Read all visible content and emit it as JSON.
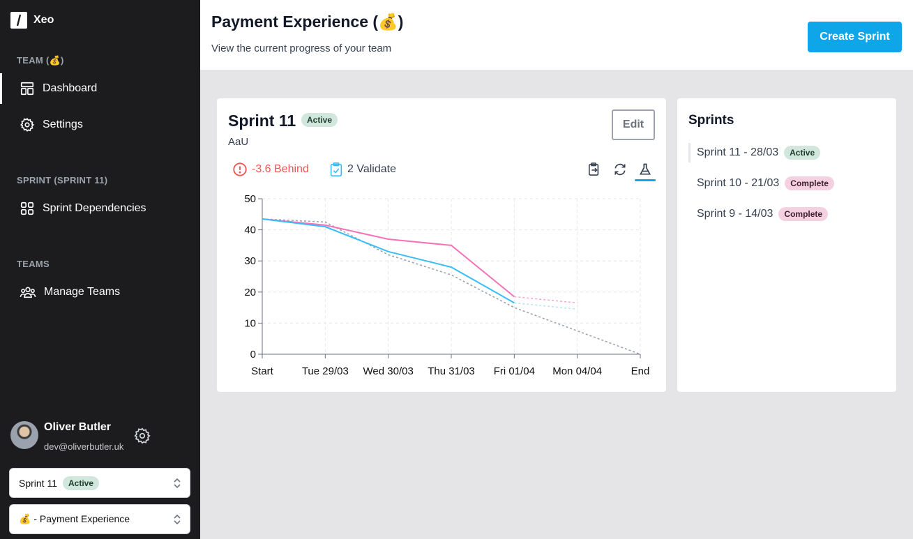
{
  "app": {
    "name": "Xeo"
  },
  "sidebar": {
    "team_section": "TEAM (💰)",
    "team_items": [
      {
        "label": "Dashboard",
        "icon": "dashboard-icon"
      },
      {
        "label": "Settings",
        "icon": "gear-icon"
      }
    ],
    "sprint_section": "SPRINT (SPRINT 11)",
    "sprint_items": [
      {
        "label": "Sprint Dependencies",
        "icon": "grid-icon"
      }
    ],
    "teams_section": "TEAMS",
    "teams_items": [
      {
        "label": "Manage Teams",
        "icon": "users-icon"
      }
    ],
    "user": {
      "name": "Oliver Butler",
      "email": "dev@oliverbutler.uk"
    },
    "sprint_select": {
      "value": "Sprint 11",
      "badge": "Active"
    },
    "team_select": {
      "value": "💰 - Payment Experience"
    }
  },
  "header": {
    "title": "Payment Experience (💰)",
    "subtitle": "View the current progress of your team",
    "create_label": "Create Sprint"
  },
  "sprint": {
    "title": "Sprint 11",
    "badge": "Active",
    "subtitle": "AaU",
    "edit_label": "Edit",
    "behind": "-3.6 Behind",
    "validate": "2 Validate"
  },
  "sprints_panel": {
    "title": "Sprints",
    "items": [
      {
        "label": "Sprint 11 - 28/03",
        "badge": "Active",
        "status": "active"
      },
      {
        "label": "Sprint 10 - 21/03",
        "badge": "Complete",
        "status": "complete"
      },
      {
        "label": "Sprint 9 - 14/03",
        "badge": "Complete",
        "status": "complete"
      }
    ]
  },
  "colors": {
    "accent": "#0ea5e9",
    "pink": "#f472b6",
    "blue": "#38bdf8",
    "ideal": "#9ca3af",
    "danger": "#f05252"
  },
  "chart_data": {
    "type": "line",
    "categories": [
      "Start",
      "Tue 29/03",
      "Wed 30/03",
      "Thu 31/03",
      "Fri 01/04",
      "Mon 04/04",
      "End"
    ],
    "ylim": [
      0,
      50
    ],
    "yticks": [
      0,
      10,
      20,
      30,
      40,
      50
    ],
    "grid": true,
    "series": [
      {
        "style": "ideal",
        "color": "#9ca3af",
        "values": [
          43.5,
          42.5,
          32,
          25.5,
          15,
          7.5,
          0
        ]
      },
      {
        "style": "solid",
        "color": "#f472b6",
        "values": [
          43.5,
          41.5,
          37,
          35,
          18.5,
          null,
          null
        ]
      },
      {
        "style": "solid",
        "color": "#38bdf8",
        "values": [
          43.5,
          41,
          33,
          28,
          16.5,
          null,
          null
        ]
      },
      {
        "style": "projection",
        "color": "#f9a8d4",
        "values": [
          null,
          null,
          null,
          null,
          18.5,
          16.5,
          null
        ]
      },
      {
        "style": "projection",
        "color": "#bae6fd",
        "values": [
          null,
          null,
          null,
          null,
          16.5,
          14.5,
          null
        ]
      }
    ]
  }
}
